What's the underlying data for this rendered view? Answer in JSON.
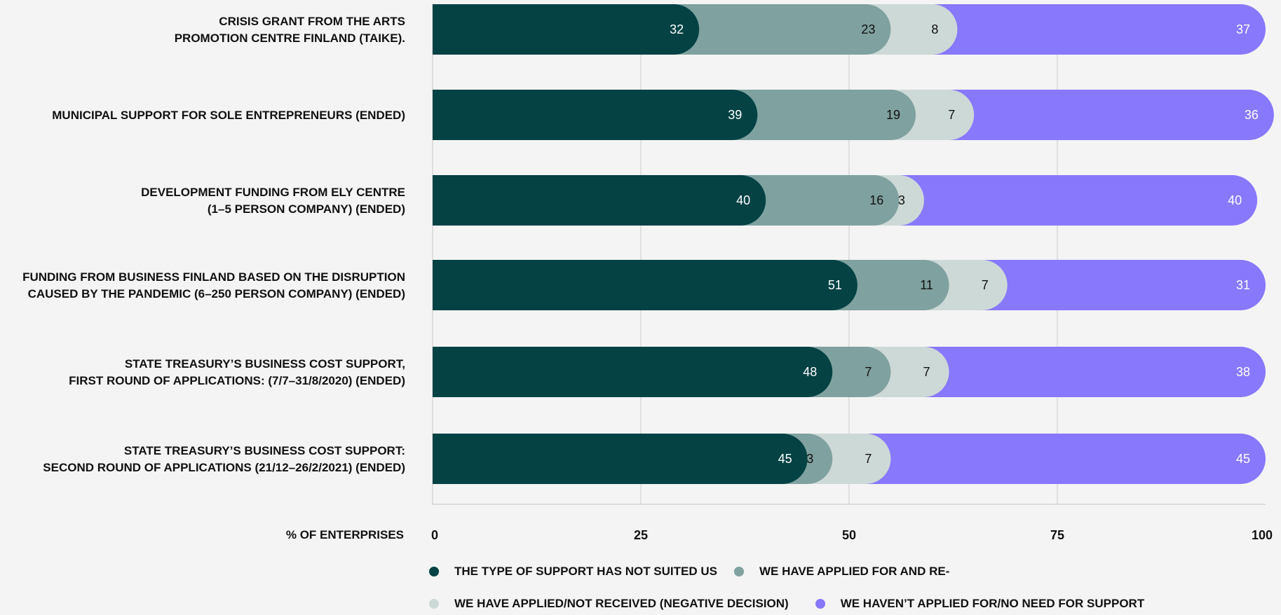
{
  "chart_data": {
    "type": "bar",
    "orientation": "horizontal",
    "stacked": true,
    "categories": [
      [
        "CRISIS GRANT FROM THE ARTS",
        "PROMOTION CENTRE FINLAND (TAIKE)."
      ],
      [
        "MUNICIPAL SUPPORT FOR SOLE ENTREPRENEURS (ENDED)"
      ],
      [
        "DEVELOPMENT FUNDING FROM ELY CENTRE",
        "(1–5 PERSON COMPANY) (ENDED)"
      ],
      [
        "FUNDING FROM BUSINESS FINLAND BASED ON THE DISRUPTION",
        "CAUSED BY THE PANDEMIC (6–250 PERSON COMPANY) (ENDED)"
      ],
      [
        "STATE TREASURY’S BUSINESS COST SUPPORT,",
        "FIRST ROUND OF APPLICATIONS: (7/7–31/8/2020) (ENDED)"
      ],
      [
        "STATE TREASURY’S BUSINESS COST SUPPORT:",
        "SECOND ROUND OF APPLICATIONS (21/12–26/2/2021) (ENDED)"
      ]
    ],
    "series": [
      {
        "name": "THE TYPE OF SUPPORT HAS NOT SUITED US",
        "color": "#044244",
        "label_color": "#ffffff",
        "values": [
          32,
          39,
          40,
          51,
          48,
          45
        ]
      },
      {
        "name": "WE HAVE APPLIED FOR AND RE-",
        "color": "#7fa19f",
        "label_color": "#111111",
        "values": [
          23,
          19,
          16,
          11,
          7,
          3
        ]
      },
      {
        "name": "WE HAVE APPLIED/NOT RECEIVED (NEGATIVE DECISION)",
        "color": "#cdd9d7",
        "label_color": "#111111",
        "values": [
          8,
          7,
          3,
          7,
          7,
          7
        ]
      },
      {
        "name": "WE HAVEN’T APPLIED FOR/NO NEED FOR SUPPORT",
        "color": "#8878fb",
        "label_color": "#ffffff",
        "values": [
          37,
          36,
          40,
          31,
          38,
          45
        ]
      }
    ],
    "xlabel": "% OF ENTERPRISES",
    "xlim": [
      0,
      100
    ],
    "xticks": [
      "0",
      "25",
      "50",
      "75",
      "100"
    ],
    "grid": true,
    "legend_position": "bottom"
  }
}
